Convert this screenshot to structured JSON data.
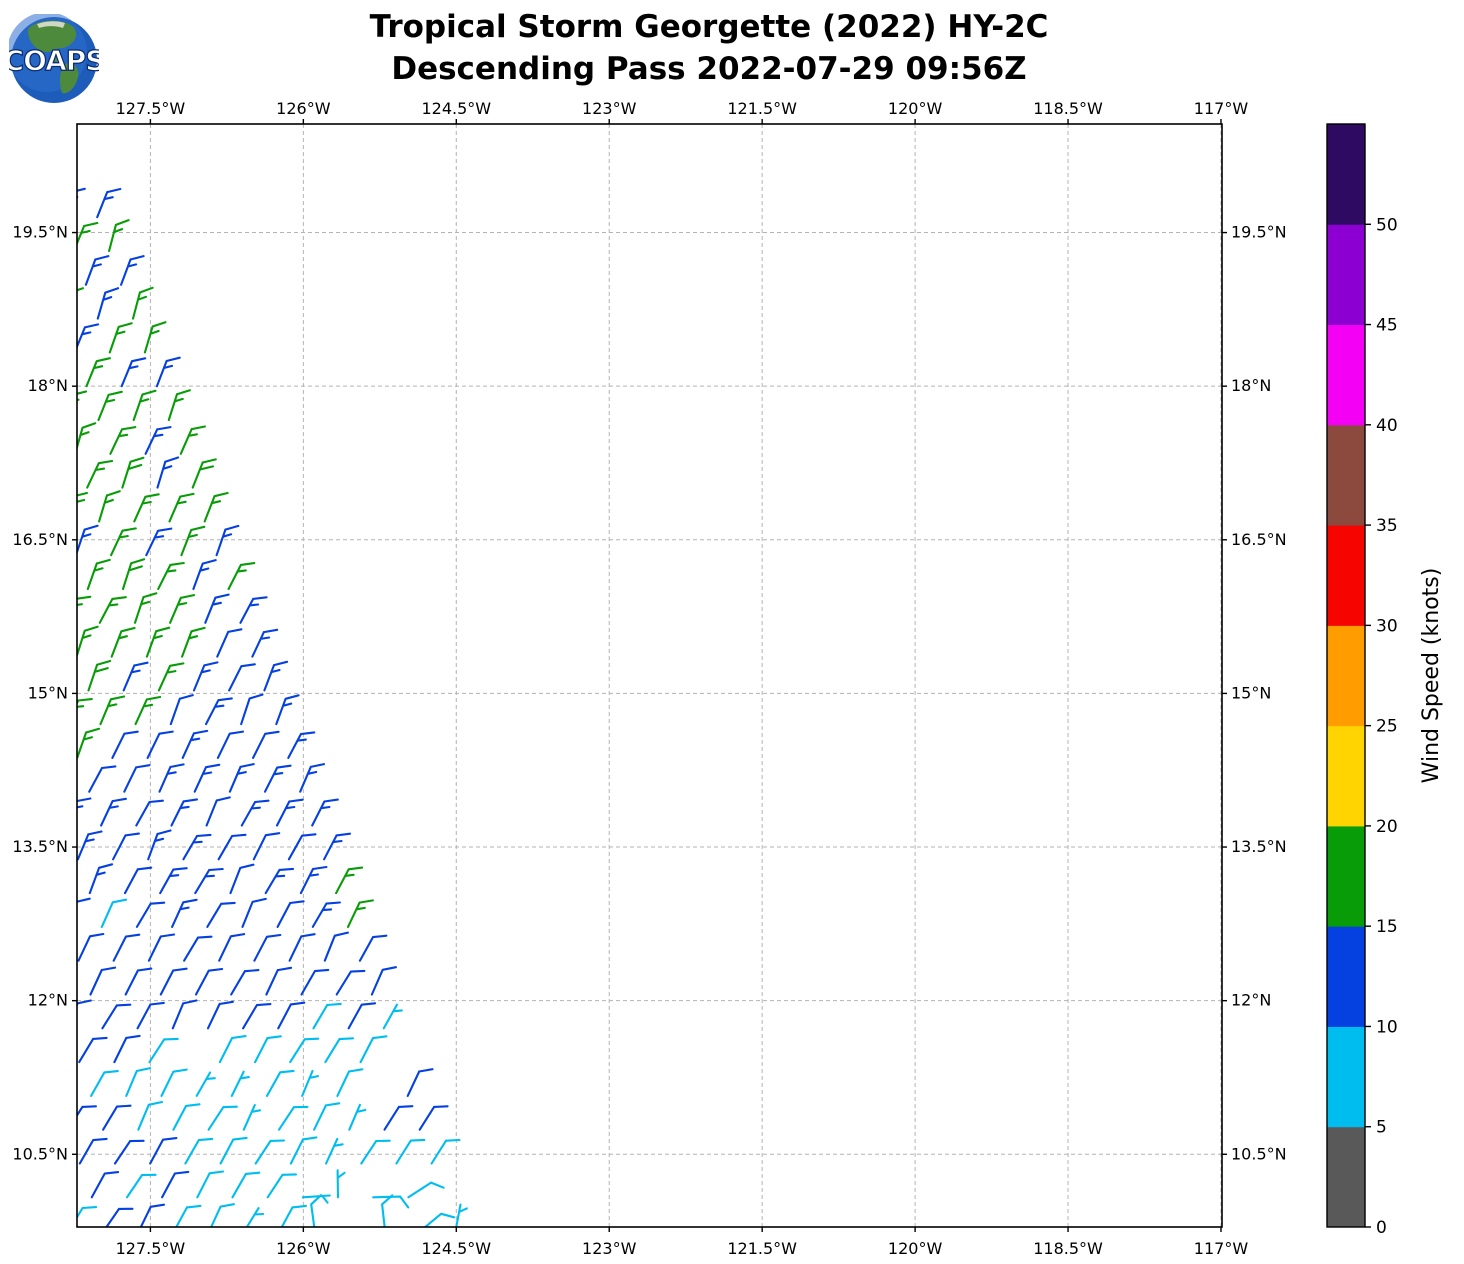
{
  "header": {
    "logo_text": "COAPS",
    "title_line1": "Tropical Storm Georgette (2022) HY-2C",
    "title_line2": "Descending Pass 2022-07-29 09:56Z"
  },
  "chart_data": {
    "type": "wind_barb_map",
    "title": "Tropical Storm Georgette (2022) HY-2C",
    "subtitle": "Descending Pass 2022-07-29 09:56Z",
    "axes": {
      "lon_tick_labels": [
        "127.5°W",
        "126°W",
        "124.5°W",
        "123°W",
        "121.5°W",
        "120°W",
        "118.5°W",
        "117°W"
      ],
      "lon_tick_values": [
        -127.5,
        -126.0,
        -124.5,
        -123.0,
        -121.5,
        -120.0,
        -118.5,
        -117.0
      ],
      "lat_tick_labels": [
        "19.5°N",
        "18°N",
        "16.5°N",
        "15°N",
        "13.5°N",
        "12°N",
        "10.5°N"
      ],
      "lat_tick_values": [
        19.5,
        18.0,
        16.5,
        15.0,
        13.5,
        12.0,
        10.5
      ],
      "lon_range": [
        -128.22,
        -116.99
      ],
      "lat_range": [
        9.79,
        20.56
      ],
      "grid_style": "dashed",
      "grid_color": "#b3b3b3",
      "labels_on_all_sides": true
    },
    "colorbar": {
      "label": "Wind Speed (knots)",
      "tick_values": [
        0,
        5,
        10,
        15,
        20,
        25,
        30,
        35,
        40,
        45,
        50
      ],
      "value_max": 55.0,
      "bins": [
        {
          "from": 0,
          "to": 5,
          "color": "#595959"
        },
        {
          "from": 5,
          "to": 10,
          "color": "#00bdf0"
        },
        {
          "from": 10,
          "to": 15,
          "color": "#0540e0"
        },
        {
          "from": 15,
          "to": 20,
          "color": "#089c08"
        },
        {
          "from": 20,
          "to": 25,
          "color": "#ffd400"
        },
        {
          "from": 25,
          "to": 30,
          "color": "#ff9c00"
        },
        {
          "from": 30,
          "to": 35,
          "color": "#f60400"
        },
        {
          "from": 35,
          "to": 40,
          "color": "#8c4a3e"
        },
        {
          "from": 40,
          "to": 45,
          "color": "#f400f4"
        },
        {
          "from": 45,
          "to": 50,
          "color": "#8c00d2"
        },
        {
          "from": 50,
          "to": 55,
          "color": "#2e0a62"
        }
      ]
    },
    "wind_barbs": {
      "units": "knots",
      "row_spacing_deg": 0.33,
      "col_spacing_deg": 0.345,
      "swath": {
        "top_lat": 19.65,
        "bottom_lat": 9.75,
        "right_edge_lon_at_ref": -127.99,
        "right_edge_ref_lat": 19.7,
        "right_edge_dlon_dlat": 0.355,
        "left_cutoff_lon": -128.38,
        "first_barb_offset_deg": 0.05
      },
      "first_row_speed_kt": 13.2,
      "speed_field": {
        "green_blue_boundary": {
          "lat_at_ref": 15.5,
          "ref_lon": -126.7,
          "dlat_dlon": 0.79
        },
        "barb_style_boundary_lat": 12.9,
        "blue_cyan_boundary": {
          "lat_at_ref": 11.24,
          "ref_lon": -128.2,
          "dlat_dlon": 0.23
        },
        "base_speeds_kt": {
          "green_zone": 16.0,
          "blue_upper_zone": 13.0,
          "blue_lower_zone": 11.0,
          "cyan_zone": 7.9
        },
        "noise_amplitude_kt": {
          "green_zone": 3.6,
          "blue_upper_zone": 2.6,
          "blue_lower_zone": 2.2,
          "cyan_zone": 2.6
        },
        "boundary_jitter_deg": 0.55,
        "patches": [
          {
            "name": "blue-barbs-bottom-left",
            "type": "bbox",
            "lat_max": 11.05,
            "lon_max": -127.75,
            "speed_kt": 11.2,
            "probability": 0.6
          },
          {
            "name": "blue-barbs-bottom-left-corner",
            "type": "bbox",
            "lat_max": 10.58,
            "lon_max": -127.3,
            "speed_kt": 11.2,
            "probability": 0.85
          },
          {
            "name": "blue-tongue-right-edge",
            "type": "bbox",
            "lat_min": 10.5,
            "lat_max": 11.2,
            "lon_min": -125.45,
            "lon_max": -124.85,
            "speed_kt": 11.0,
            "probability": 1.0
          },
          {
            "name": "green-anomaly-1",
            "type": "spot",
            "center_lon": -125.78,
            "center_lat": 12.97,
            "radius_deg": 0.2,
            "speed_kt": 15.6
          },
          {
            "name": "green-anomaly-2",
            "type": "spot",
            "center_lon": -125.62,
            "center_lat": 12.55,
            "radius_deg": 0.2,
            "speed_kt": 15.6
          }
        ],
        "dropout": {
          "lat_max": 11.4,
          "probability": 0.05
        }
      },
      "direction_field": {
        "base_from_deg": 18,
        "increase_per_deg_south": 1.15,
        "jitter_deg": 11,
        "scatter_zone": {
          "lat_max": 10.3,
          "lon_min": -126.2,
          "extra_jitter_deg": 150
        }
      }
    }
  }
}
